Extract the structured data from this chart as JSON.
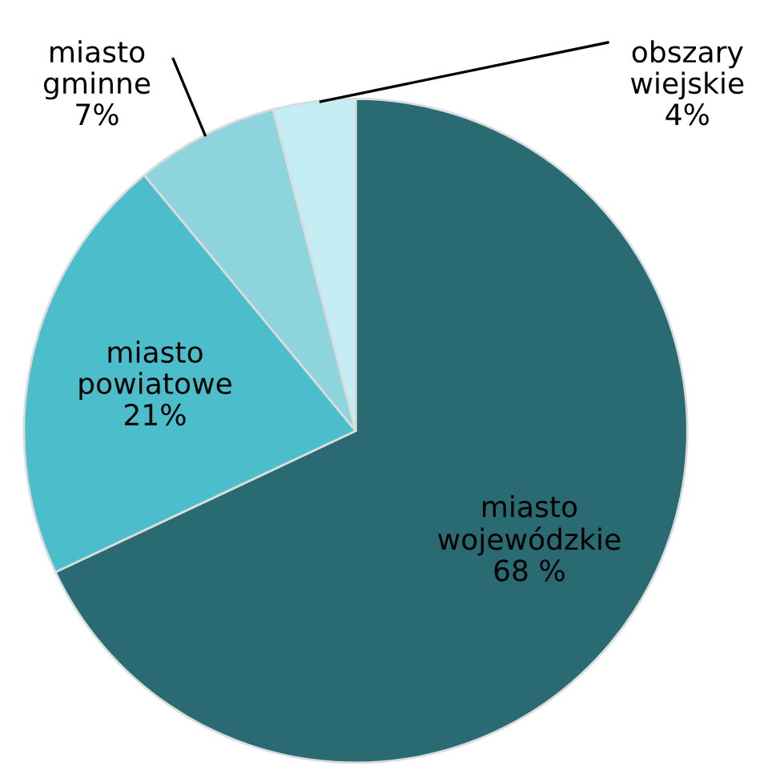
{
  "chart_data": {
    "type": "pie",
    "categories": [
      "miasto wojewódzkie",
      "miasto powiatowe",
      "miasto gminne",
      "obszary wiejskie"
    ],
    "values": [
      68,
      21,
      7,
      4
    ],
    "value_labels": [
      "68 %",
      "21%",
      "7%",
      "4%"
    ],
    "colors": [
      "#2a6b73",
      "#4bbdcb",
      "#8dd4dc",
      "#c4eef3"
    ]
  }
}
